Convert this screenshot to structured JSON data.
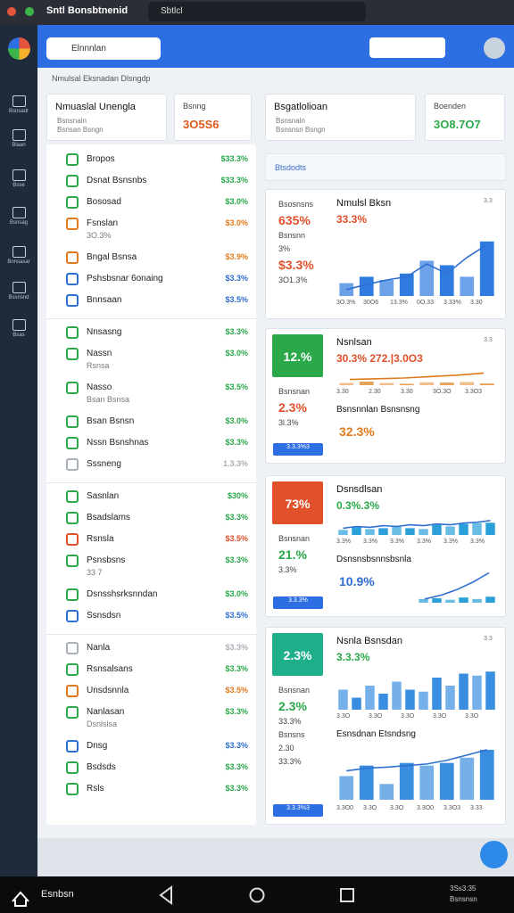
{
  "window": {
    "title": "Sntl Bonsbtnenid",
    "tab": "Sbtlcl"
  },
  "header": {
    "search": "Elnnnlan"
  },
  "sidebar": [
    "Bsnsadr",
    "Blaan",
    "Bsse",
    "Bsnsag",
    "Bnnsasar",
    "Bssnsnd",
    "Bsas"
  ],
  "breadcrumb": "Nmulsal Eksnadan Dlsngdp",
  "summary": [
    {
      "title": "Nmuaslal Unengla",
      "lines": [
        "Bsnsnaln",
        "Bsnsan Bsngn"
      ]
    },
    {
      "title": "Bsnng",
      "value": "3O5S6",
      "color": "#e05a1c"
    },
    {
      "title": "Bsgatlolioan",
      "lines": [
        "Bsnsnaln",
        "Bsnsnsn Bsngn"
      ]
    },
    {
      "title": "Boenden",
      "value": "3O8.7O7",
      "color": "#2aa84a"
    }
  ],
  "filter": "Btsdodts",
  "list": [
    [
      {
        "label": "Bropos",
        "value": "$33.3%",
        "color": "#2aa84a"
      },
      {
        "label": "Dsnat Bsnsnbs",
        "value": "$33.3%",
        "color": "#2aa84a"
      },
      {
        "label": "Bososad",
        "value": "$3.0%",
        "color": "#2aa84a"
      },
      {
        "label": "Fsnslan",
        "sub": "3O.3%",
        "value": "$3.0%",
        "color": "#e07a1c"
      },
      {
        "label": "Bngal Bsnsa",
        "value": "$3.9%",
        "color": "#e07a1c"
      },
      {
        "label": "Pshsbsnar 6onaing",
        "value": "$3.3%",
        "color": "#2f6fd0"
      },
      {
        "label": "Bnnsaan",
        "value": "$3.5%",
        "color": "#2f6fd0"
      }
    ],
    [
      {
        "label": "Nnsasng",
        "value": "$3.3%",
        "color": "#2aa84a"
      },
      {
        "label": "Nassn",
        "sub": "Rsnsa",
        "value": "$3.0%",
        "color": "#2aa84a"
      },
      {
        "label": "Nasso",
        "sub": "Bsan Bsnsa",
        "value": "$3.5%",
        "color": "#2aa84a"
      },
      {
        "label": "Bsan Bsnsn",
        "value": "$3.0%",
        "color": "#2aa84a"
      },
      {
        "label": "Nssn Bsnshnas",
        "value": "$3.3%",
        "color": "#2aa84a"
      },
      {
        "label": "Sssneng",
        "value": "1.3.3%",
        "color": "#aab0b8"
      }
    ],
    [
      {
        "label": "Sasnlan",
        "value": "$30%",
        "color": "#2aa84a"
      },
      {
        "label": "Bsadslams",
        "value": "$3.3%",
        "color": "#2aa84a"
      },
      {
        "label": "Rsnsla",
        "value": "$3.5%",
        "color": "#e0502a"
      },
      {
        "label": "Psnsbsns",
        "sub": "33 7",
        "value": "$3.3%",
        "color": "#2aa84a"
      },
      {
        "label": "Dsnsshsrksnndan",
        "value": "$3.0%",
        "color": "#2aa84a"
      },
      {
        "label": "Ssnsdsn",
        "value": "$3.5%",
        "color": "#2f6fd0"
      }
    ],
    [
      {
        "label": "Nanla",
        "value": "$3.3%",
        "color": "#aab0b8"
      },
      {
        "label": "Rsnsalsans",
        "value": "$3.3%",
        "color": "#2aa84a"
      },
      {
        "label": "Unsdsnnla",
        "value": "$3.5%",
        "color": "#e07a1c"
      },
      {
        "label": "Nanlasan",
        "sub": "Dsnlslsa",
        "value": "$3.3%",
        "color": "#2aa84a"
      },
      {
        "label": "Dnsg",
        "value": "$3.3%",
        "color": "#2f6fd0"
      },
      {
        "label": "Bsdsds",
        "value": "$3.3%",
        "color": "#2aa84a"
      },
      {
        "label": "Rsls",
        "value": "$3.3%",
        "color": "#2aa84a"
      }
    ]
  ],
  "cards": [
    {
      "stats": [
        "Bsosnsns",
        "635%",
        "Bsnsnn",
        "3%",
        "$3.3%",
        "3O1.3%"
      ],
      "title": "Nmulsl Bksn",
      "headline": "33.3%",
      "headline_color": "#e0502a",
      "tick": "3.3",
      "color": "#2f7be0",
      "bars": [
        20,
        30,
        25,
        35,
        55,
        48,
        30,
        85
      ],
      "line": [
        10,
        18,
        25,
        30,
        50,
        35,
        60,
        80
      ],
      "xlabels": [
        "3O.3%",
        "30O6",
        "13.3%",
        "0O.33",
        "3.33%",
        "3.30"
      ]
    },
    {
      "badge": "12.%",
      "badge_color": "#2aa84a",
      "stats": [
        "Bsnsnan",
        "2.3%",
        "3l.3%"
      ],
      "button": "3.3.3%3",
      "title": "Nsnlsan",
      "headline": "30.3% 272.|3.0O3",
      "headline_color": "#e0502a",
      "tick": "3.3",
      "color": "#e8a35a",
      "bars": [
        15,
        25,
        15,
        10,
        20,
        18,
        22,
        12
      ],
      "line": [
        40,
        45,
        50,
        60,
        70,
        85
      ],
      "title2": "Bsnsnnlan Bsnsnsng",
      "headline2": "32.3%",
      "xlabels": [
        "3.30",
        "2.30",
        "3.30",
        "3O.3O",
        "3.3O3"
      ]
    },
    {
      "badge": "73%",
      "badge_color": "#e0502a",
      "stats": [
        "Bsnsnan",
        "21.%",
        "3.3%"
      ],
      "button": "3.3.3%",
      "title": "Dsnsdlsan",
      "headline": "0.3%.3%",
      "headline_color": "#2aa84a",
      "color": "#2a9fd8",
      "bars": [
        30,
        45,
        35,
        40,
        55,
        40,
        35,
        60,
        50,
        65,
        70,
        72
      ],
      "line": [
        40,
        50,
        45,
        55,
        50,
        60,
        55,
        65,
        60,
        70,
        75,
        85
      ],
      "xlabels": [
        "3.3%",
        "3.3%",
        "3.3%",
        "3.3%",
        "3.3%",
        "3.3%"
      ],
      "title2": "Dsnsnsbsnnsbsnla",
      "headline2": "10.9%",
      "bars2": [
        10,
        12,
        8,
        14,
        10,
        16
      ],
      "line2": [
        10,
        20,
        35,
        55,
        80
      ]
    },
    {
      "badge": "2.3%",
      "badge_color": "#1fae8a",
      "stats": [
        "Bsnsnan",
        "2.3%",
        "33.3%",
        "Bsnsns",
        "2.30",
        "33.3%"
      ],
      "button": "3.3.3%3",
      "title": "Nsnla Bsnsdan",
      "headline": "3.3.3%",
      "headline_color": "#2aa84a",
      "tick": "3.3",
      "color": "#3a8ee0",
      "bars": [
        50,
        30,
        60,
        40,
        70,
        50,
        45,
        80,
        60,
        90,
        85,
        95
      ],
      "xlabels": [
        "3.3O",
        "3.3O",
        "3.3O",
        "3.3O",
        "3.3O"
      ],
      "title2": "Esnsdnan Etsndsng",
      "bars2": [
        45,
        65,
        30,
        70,
        65,
        70,
        80,
        95
      ],
      "line2": [
        55,
        60,
        62,
        65,
        68,
        75,
        85,
        95
      ],
      "xlabels2": [
        "3.3O0",
        "3.3O",
        "3.3O",
        "3.3O0",
        "3.3O3",
        "3.33"
      ]
    }
  ],
  "footer": {
    "nav": "Esnbsn",
    "clock": [
      "3Ss3:35",
      "Bsnsnsn"
    ]
  }
}
